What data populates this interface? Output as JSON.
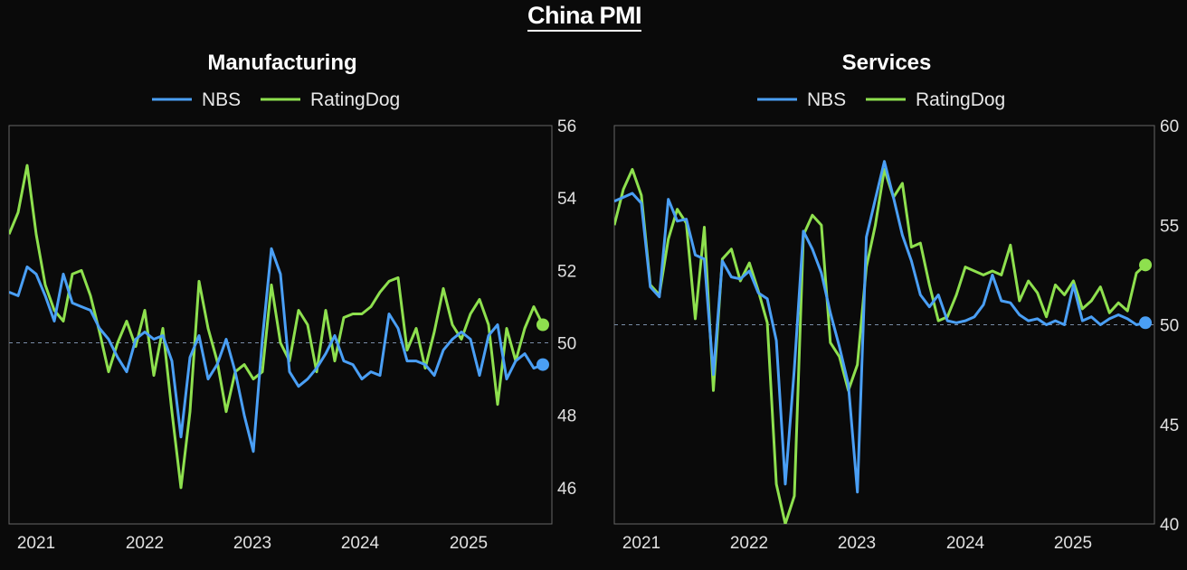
{
  "title": "China PMI",
  "colors": {
    "nbs": "#4a9ff5",
    "ratingdog": "#8ee04e",
    "background": "#0a0a0a",
    "frame": "#666666",
    "reference_line": "#7a8ea8"
  },
  "chart_data": [
    {
      "type": "line",
      "title": "Manufacturing",
      "legend": [
        "NBS",
        "RatingDog"
      ],
      "legend_position": "top-center",
      "xlabel": "",
      "ylabel": "",
      "x_ticks": [
        "2021",
        "2022",
        "2023",
        "2024",
        "2025"
      ],
      "x_range": [
        "2020-10",
        "2025-10"
      ],
      "ylim": [
        45,
        56
      ],
      "y_ticks": [
        46,
        48,
        50,
        52,
        54,
        56
      ],
      "y_axis_side": "right",
      "reference_line": 50,
      "grid": false,
      "series": [
        {
          "name": "NBS",
          "start": "2020-10",
          "values": [
            51.4,
            51.3,
            52.1,
            51.9,
            51.3,
            50.6,
            51.9,
            51.1,
            51.0,
            50.9,
            50.4,
            50.1,
            49.6,
            49.2,
            50.1,
            50.3,
            50.1,
            50.2,
            49.5,
            47.4,
            49.6,
            50.2,
            49.0,
            49.4,
            50.1,
            49.2,
            48.0,
            47.0,
            50.1,
            52.6,
            51.9,
            49.2,
            48.8,
            49.0,
            49.3,
            49.7,
            50.2,
            49.5,
            49.4,
            49.0,
            49.2,
            49.1,
            50.8,
            50.4,
            49.5,
            49.5,
            49.4,
            49.1,
            49.8,
            50.1,
            50.3,
            50.1,
            49.1,
            50.2,
            50.5,
            49.0,
            49.5,
            49.7,
            49.3,
            49.4
          ]
        },
        {
          "name": "RatingDog",
          "start": "2020-10",
          "values": [
            53.0,
            53.6,
            54.9,
            53.0,
            51.6,
            50.9,
            50.6,
            51.9,
            52.0,
            51.3,
            50.3,
            49.2,
            50.0,
            50.6,
            49.9,
            50.9,
            49.1,
            50.4,
            48.1,
            46.0,
            48.1,
            51.7,
            50.4,
            49.5,
            48.1,
            49.2,
            49.4,
            49.0,
            49.2,
            51.6,
            50.0,
            49.5,
            50.9,
            50.5,
            49.2,
            50.9,
            49.5,
            50.7,
            50.8,
            50.8,
            51.0,
            51.4,
            51.7,
            51.8,
            49.8,
            50.4,
            49.3,
            50.3,
            51.5,
            50.5,
            50.1,
            50.8,
            51.2,
            50.5,
            48.3,
            50.4,
            49.5,
            50.4,
            51.0,
            50.5
          ]
        }
      ]
    },
    {
      "type": "line",
      "title": "Services",
      "legend": [
        "NBS",
        "RatingDog"
      ],
      "legend_position": "top-center",
      "xlabel": "",
      "ylabel": "",
      "x_ticks": [
        "2021",
        "2022",
        "2023",
        "2024",
        "2025"
      ],
      "x_range": [
        "2020-10",
        "2025-10"
      ],
      "ylim": [
        40,
        60
      ],
      "y_ticks": [
        40,
        45,
        50,
        55,
        60
      ],
      "y_axis_side": "right",
      "reference_line": 50,
      "grid": false,
      "series": [
        {
          "name": "NBS",
          "start": "2020-10",
          "values": [
            56.2,
            56.4,
            56.6,
            56.1,
            51.9,
            51.4,
            56.3,
            55.2,
            55.3,
            53.5,
            53.3,
            47.5,
            53.2,
            52.4,
            52.3,
            52.7,
            51.6,
            51.3,
            49.2,
            42.0,
            47.8,
            54.7,
            53.8,
            52.6,
            50.6,
            48.9,
            47.0,
            41.6,
            54.4,
            56.3,
            58.2,
            56.4,
            54.5,
            53.2,
            51.5,
            50.9,
            51.5,
            50.2,
            50.1,
            50.2,
            50.4,
            51.0,
            52.5,
            51.2,
            51.1,
            50.5,
            50.2,
            50.3,
            50.0,
            50.2,
            50.0,
            52.0,
            50.2,
            50.4,
            50.0,
            50.3,
            50.5,
            50.3,
            50.0,
            50.1
          ]
        },
        {
          "name": "RatingDog",
          "start": "2020-10",
          "values": [
            55.0,
            56.8,
            57.8,
            56.5,
            52.0,
            51.5,
            54.3,
            55.8,
            55.1,
            50.3,
            54.9,
            46.7,
            53.3,
            53.8,
            52.2,
            53.1,
            51.7,
            50.1,
            42.0,
            40.0,
            41.4,
            54.5,
            55.5,
            55.0,
            49.1,
            48.4,
            46.7,
            48.0,
            52.9,
            55.0,
            57.8,
            56.4,
            57.1,
            53.9,
            54.1,
            52.0,
            50.2,
            50.4,
            51.5,
            52.9,
            52.7,
            52.5,
            52.7,
            52.5,
            54.0,
            51.2,
            52.2,
            51.6,
            50.4,
            52.0,
            51.5,
            52.2,
            50.8,
            51.2,
            51.9,
            50.6,
            51.1,
            50.7,
            52.6,
            53.0
          ]
        }
      ]
    }
  ]
}
